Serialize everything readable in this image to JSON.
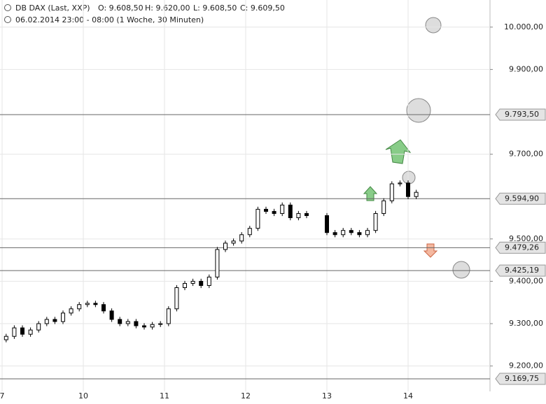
{
  "chart_data": {
    "type": "candlestick",
    "title": "DB DAX (Last, XXP)",
    "ohlc": [
      "O: 9.608,50",
      "H: 9.620,00",
      "L: 9.608,50",
      "C: 9.609,50"
    ],
    "subtitle": "06.02.2014 23:00 - 08:00 (1 Woche, 30 Minuten)",
    "xlim": [
      0,
      6
    ],
    "xticks": [
      {
        "value": 0,
        "label": "7"
      },
      {
        "value": 1,
        "label": "10"
      },
      {
        "value": 2,
        "label": "11"
      },
      {
        "value": 3,
        "label": "12"
      },
      {
        "value": 4,
        "label": "13"
      },
      {
        "value": 5,
        "label": "14"
      }
    ],
    "ylim": [
      9140,
      10064
    ],
    "yticks": [
      {
        "value": 10000,
        "label": "10.000,00"
      },
      {
        "value": 9900,
        "label": "9.900,00"
      },
      {
        "value": 9700,
        "label": "9.700,00"
      },
      {
        "value": 9500,
        "label": "9.500,00"
      },
      {
        "value": 9400,
        "label": "9.400,00"
      },
      {
        "value": 9300,
        "label": "9.300,00"
      },
      {
        "value": 9200,
        "label": "9.200,00"
      }
    ],
    "grid": true,
    "levels": [
      {
        "value": 9793.5,
        "label": "9.793,50"
      },
      {
        "value": 9594.9,
        "label": "9.594,90"
      },
      {
        "value": 9479.26,
        "label": "9.479,26"
      },
      {
        "value": 9425.19,
        "label": "9.425,19"
      },
      {
        "value": 9169.75,
        "label": "9.169,75"
      }
    ],
    "x": [
      0.05,
      0.15,
      0.25,
      0.35,
      0.45,
      0.55,
      0.65,
      0.75,
      0.85,
      0.95,
      1.05,
      1.15,
      1.25,
      1.35,
      1.45,
      1.55,
      1.65,
      1.75,
      1.85,
      1.95,
      2.05,
      2.15,
      2.25,
      2.35,
      2.45,
      2.55,
      2.65,
      2.75,
      2.85,
      2.95,
      3.05,
      3.15,
      3.25,
      3.35,
      3.45,
      3.55,
      3.65,
      3.75,
      4.0,
      4.1,
      4.2,
      4.3,
      4.4,
      4.5,
      4.6,
      4.7,
      4.8,
      4.9,
      5.0,
      5.1
    ],
    "open": [
      9262,
      9270,
      9290,
      9275,
      9285,
      9300,
      9310,
      9305,
      9325,
      9335,
      9345,
      9348,
      9345,
      9330,
      9310,
      9300,
      9305,
      9295,
      9292,
      9298,
      9300,
      9335,
      9385,
      9395,
      9400,
      9390,
      9410,
      9475,
      9490,
      9495,
      9510,
      9525,
      9570,
      9565,
      9560,
      9580,
      9550,
      9560,
      9555,
      9515,
      9510,
      9520,
      9515,
      9510,
      9520,
      9560,
      9590,
      9630,
      9632,
      9600
    ],
    "high": [
      9276,
      9296,
      9296,
      9291,
      9306,
      9316,
      9316,
      9331,
      9341,
      9351,
      9354,
      9354,
      9351,
      9336,
      9316,
      9311,
      9311,
      9301,
      9304,
      9306,
      9341,
      9391,
      9401,
      9406,
      9406,
      9416,
      9481,
      9496,
      9501,
      9516,
      9531,
      9576,
      9576,
      9571,
      9586,
      9586,
      9566,
      9566,
      9561,
      9521,
      9526,
      9526,
      9521,
      9526,
      9566,
      9596,
      9636,
      9638,
      9638,
      9616
    ],
    "low": [
      9256,
      9264,
      9269,
      9269,
      9279,
      9294,
      9299,
      9299,
      9319,
      9329,
      9339,
      9339,
      9324,
      9304,
      9294,
      9294,
      9289,
      9286,
      9286,
      9292,
      9294,
      9329,
      9379,
      9389,
      9384,
      9384,
      9404,
      9469,
      9484,
      9489,
      9504,
      9519,
      9559,
      9554,
      9554,
      9544,
      9544,
      9549,
      9509,
      9504,
      9504,
      9509,
      9504,
      9504,
      9514,
      9554,
      9584,
      9624,
      9594,
      9594
    ],
    "close": [
      9270,
      9290,
      9275,
      9285,
      9300,
      9310,
      9305,
      9325,
      9335,
      9345,
      9348,
      9345,
      9330,
      9310,
      9300,
      9305,
      9295,
      9292,
      9298,
      9300,
      9335,
      9385,
      9395,
      9400,
      9390,
      9410,
      9475,
      9490,
      9495,
      9510,
      9525,
      9570,
      9565,
      9560,
      9580,
      9550,
      9560,
      9555,
      9515,
      9510,
      9520,
      9515,
      9510,
      9520,
      9560,
      9590,
      9630,
      9632,
      9600,
      9610
    ]
  }
}
